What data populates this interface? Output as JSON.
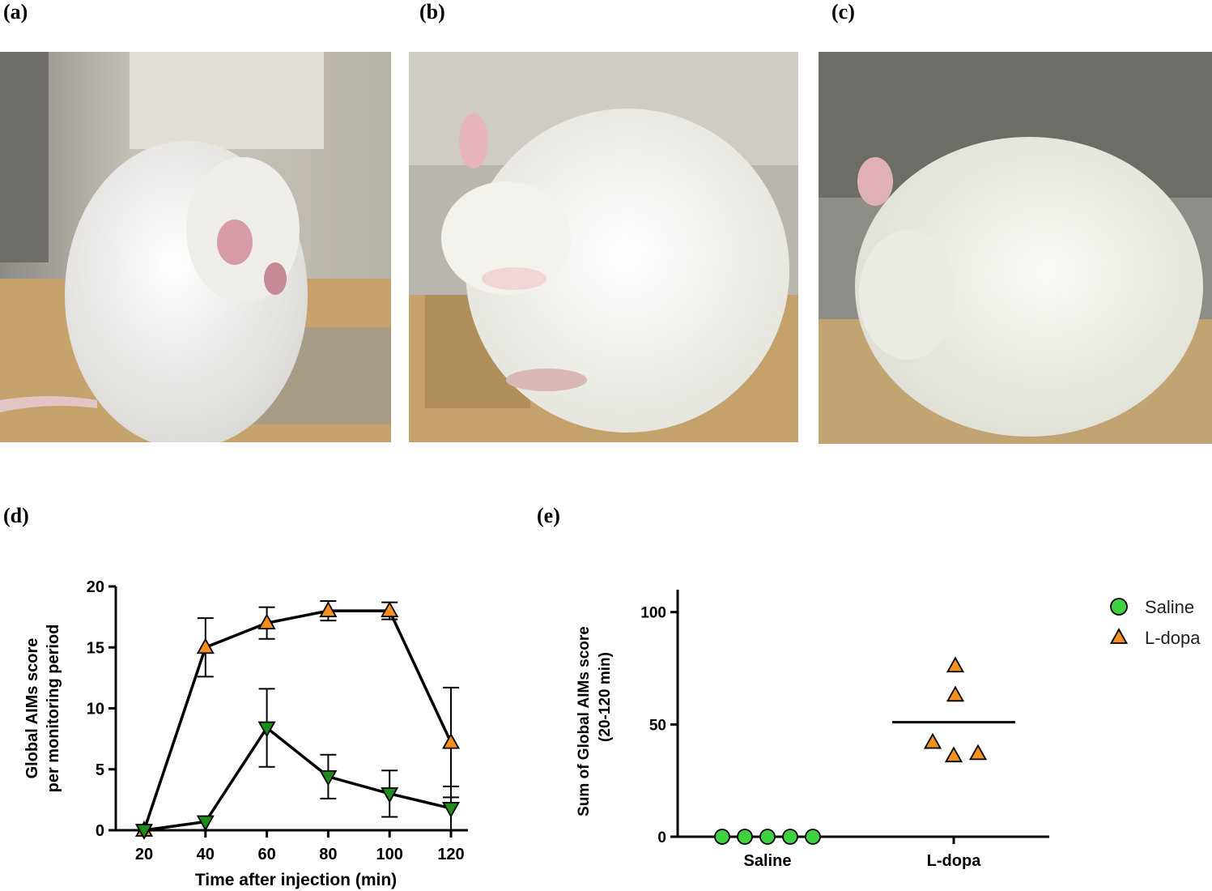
{
  "panels": {
    "a": "(a)",
    "b": "(b)",
    "c": "(c)",
    "d": "(d)",
    "e": "(e)"
  },
  "colors": {
    "lDopa": "#f5901e",
    "saline_time": "#1f8c1f",
    "saline_scatter": "#3fd13f",
    "photo_bg": "#c8c2b6",
    "bedding": "#c9a56e",
    "rat": "#f1f0ea"
  },
  "chart_data": [
    {
      "type": "line",
      "panel": "d",
      "xlabel": "Time after injection (min)",
      "ylabel": [
        "Global AIMs score",
        "per monitoring period"
      ],
      "x": [
        20,
        40,
        60,
        80,
        100,
        120
      ],
      "xticks": [
        "20",
        "40",
        "60",
        "80",
        "100",
        "120"
      ],
      "ylim": [
        0,
        20
      ],
      "yticks": [
        "0",
        "5",
        "10",
        "15",
        "20"
      ],
      "series": [
        {
          "marker": "triangle-up",
          "color": "#f5901e",
          "values": [
            0,
            15,
            17,
            18,
            18,
            7.2
          ],
          "error": [
            0,
            2.4,
            1.3,
            0.8,
            0.7,
            4.5
          ]
        },
        {
          "marker": "triangle-down",
          "color": "#1f8c1f",
          "values": [
            0,
            0.7,
            8.4,
            4.4,
            3.0,
            1.8
          ],
          "error": [
            0,
            0,
            3.2,
            1.8,
            1.9,
            1.8
          ]
        }
      ]
    },
    {
      "type": "scatter",
      "panel": "e",
      "ylabel": [
        "Sum of Global AIMs score",
        "(20-120 min)"
      ],
      "categories": [
        "Saline",
        "L-dopa"
      ],
      "ylim": [
        0,
        110
      ],
      "yticks": [
        "0",
        "50",
        "100"
      ],
      "legend": [
        {
          "name": "Saline",
          "marker": "circle",
          "color": "#3fd13f"
        },
        {
          "name": "L-dopa",
          "marker": "triangle-up",
          "color": "#f5901e"
        }
      ],
      "legend_position": "top-right",
      "groups": [
        {
          "category": "Saline",
          "values": [
            0,
            0,
            0,
            0,
            0
          ],
          "mean": 0
        },
        {
          "category": "L-dopa",
          "values": [
            76,
            63,
            42,
            36,
            37
          ],
          "mean": 51
        }
      ]
    }
  ]
}
